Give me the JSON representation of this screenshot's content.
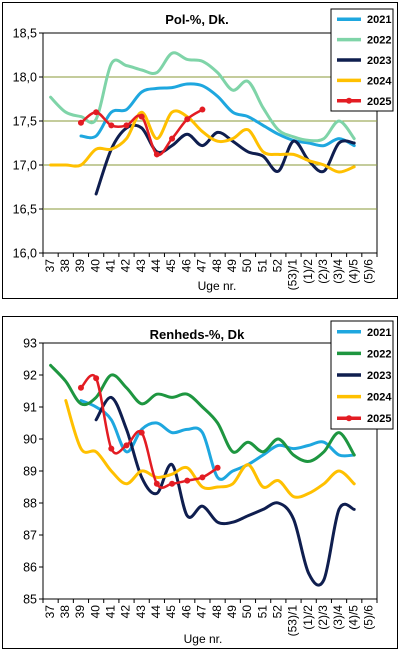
{
  "chart_data": [
    {
      "type": "line",
      "title": "Pol-%, Dk.",
      "xlabel": "Uge nr.",
      "ylabel": "",
      "ylim": [
        16.0,
        18.5
      ],
      "yticks": [
        "16,0",
        "16,5",
        "17,0",
        "17,5",
        "18,0",
        "18,5"
      ],
      "categories": [
        "37",
        "38",
        "39",
        "40",
        "41",
        "42",
        "43",
        "44",
        "45",
        "46",
        "47",
        "48",
        "49",
        "50",
        "51",
        "52",
        "(53)/1",
        "(1)/2",
        "(2)/3",
        "(3)/4",
        "(4)/5",
        "(5)/6"
      ],
      "grid": "horizontal",
      "legend_position": "top-right",
      "series": [
        {
          "name": "2021",
          "color": "#1ea7df",
          "values": [
            null,
            null,
            17.33,
            17.33,
            17.6,
            17.63,
            17.83,
            17.87,
            17.88,
            17.92,
            17.9,
            17.78,
            17.6,
            17.55,
            17.45,
            17.35,
            17.28,
            17.25,
            17.22,
            17.3,
            17.22,
            null
          ]
        },
        {
          "name": "2022",
          "color": "#7fd4a8",
          "values": [
            17.77,
            17.6,
            17.55,
            17.52,
            18.15,
            18.13,
            18.08,
            18.05,
            18.27,
            18.2,
            18.18,
            18.05,
            17.85,
            17.95,
            17.65,
            17.4,
            17.32,
            17.28,
            17.3,
            17.5,
            17.3,
            null
          ]
        },
        {
          "name": "2023",
          "color": "#0f1e4f",
          "values": [
            null,
            null,
            null,
            16.67,
            17.18,
            17.42,
            17.42,
            17.15,
            17.22,
            17.35,
            17.22,
            17.37,
            17.27,
            17.15,
            17.1,
            16.93,
            17.27,
            17.05,
            16.93,
            17.25,
            17.25,
            null
          ]
        },
        {
          "name": "2024",
          "color": "#ffc000",
          "values": [
            17.0,
            17.0,
            17.0,
            17.18,
            17.18,
            17.3,
            17.6,
            17.3,
            17.6,
            17.55,
            17.38,
            17.27,
            17.3,
            17.4,
            17.15,
            17.12,
            17.12,
            17.05,
            17.0,
            16.92,
            16.98,
            null
          ]
        },
        {
          "name": "2025",
          "color": "#e31c23",
          "values": [
            null,
            null,
            17.48,
            17.6,
            17.45,
            17.45,
            17.55,
            17.12,
            17.3,
            17.52,
            17.63,
            null,
            null,
            null,
            null,
            null,
            null,
            null,
            null,
            null,
            null,
            null
          ]
        }
      ]
    },
    {
      "type": "line",
      "title": "Renheds-%, Dk",
      "xlabel": "Uge nr.",
      "ylabel": "",
      "ylim": [
        85,
        93
      ],
      "yticks": [
        "85",
        "86",
        "87",
        "88",
        "89",
        "90",
        "91",
        "92",
        "93"
      ],
      "categories": [
        "37",
        "38",
        "39",
        "40",
        "41",
        "42",
        "43",
        "44",
        "45",
        "46",
        "47",
        "48",
        "49",
        "50",
        "51",
        "52",
        "(53)/1",
        "(1)/2",
        "(2)/3",
        "(3)/4",
        "(4)/5",
        "(5)/6"
      ],
      "grid": "none",
      "legend_position": "top-right",
      "series": [
        {
          "name": "2021",
          "color": "#1ea7df",
          "values": [
            null,
            null,
            91.2,
            91.0,
            90.6,
            89.6,
            90.3,
            90.5,
            90.2,
            90.3,
            90.2,
            88.8,
            89.0,
            89.2,
            89.5,
            89.8,
            89.7,
            89.8,
            89.9,
            89.5,
            89.5,
            null
          ]
        },
        {
          "name": "2022",
          "color": "#1e9640",
          "values": [
            92.3,
            91.8,
            91.1,
            91.3,
            92.0,
            91.6,
            91.1,
            91.4,
            91.3,
            91.4,
            91.0,
            90.5,
            89.6,
            89.9,
            89.6,
            90.0,
            89.5,
            89.3,
            89.6,
            90.2,
            89.5,
            null
          ]
        },
        {
          "name": "2023",
          "color": "#0f1e4f",
          "values": [
            null,
            null,
            null,
            90.6,
            91.3,
            90.3,
            88.8,
            88.3,
            89.2,
            87.6,
            87.9,
            87.4,
            87.4,
            87.6,
            87.8,
            88.0,
            87.5,
            85.8,
            85.6,
            87.8,
            87.8,
            null
          ]
        },
        {
          "name": "2024",
          "color": "#ffc000",
          "values": [
            null,
            91.2,
            89.7,
            89.6,
            89.0,
            88.6,
            89.0,
            88.8,
            88.9,
            89.1,
            88.5,
            88.5,
            88.6,
            89.2,
            88.5,
            88.7,
            88.2,
            88.3,
            88.6,
            89.0,
            88.6,
            null
          ]
        },
        {
          "name": "2025",
          "color": "#e31c23",
          "values": [
            null,
            null,
            91.6,
            91.9,
            89.7,
            89.8,
            90.2,
            88.6,
            88.6,
            88.7,
            88.8,
            89.1,
            null,
            null,
            null,
            null,
            null,
            null,
            null,
            null,
            null,
            null
          ]
        }
      ]
    }
  ]
}
